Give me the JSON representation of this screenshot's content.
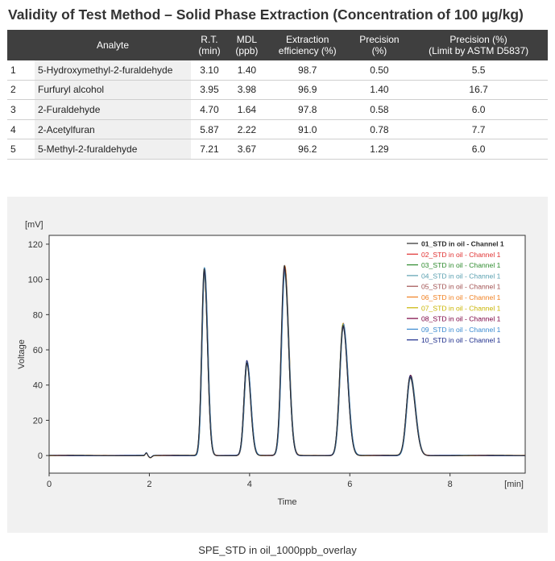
{
  "title": "Validity of Test Method – Solid Phase Extraction (Concentration of 100 µg/kg)",
  "table": {
    "headers": [
      {
        "line1": "",
        "line2": ""
      },
      {
        "line1": "Analyte",
        "line2": ""
      },
      {
        "line1": "R.T.",
        "line2": "(min)"
      },
      {
        "line1": "MDL",
        "line2": "(ppb)"
      },
      {
        "line1": "Extraction",
        "line2": "efficiency (%)"
      },
      {
        "line1": "Precision",
        "line2": "(%)"
      },
      {
        "line1": "Precision (%)",
        "line2": "(Limit by ASTM D5837)"
      }
    ],
    "rows": [
      {
        "num": "1",
        "analyte": "5-Hydroxymethyl-2-furaldehyde",
        "rt": "3.10",
        "mdl": "1.40",
        "eff": "98.7",
        "prec": "0.50",
        "limit": "5.5"
      },
      {
        "num": "2",
        "analyte": "Furfuryl alcohol",
        "rt": "3.95",
        "mdl": "3.98",
        "eff": "96.9",
        "prec": "1.40",
        "limit": "16.7"
      },
      {
        "num": "3",
        "analyte": "2-Furaldehyde",
        "rt": "4.70",
        "mdl": "1.64",
        "eff": "97.8",
        "prec": "0.58",
        "limit": "6.0"
      },
      {
        "num": "4",
        "analyte": "2-Acetylfuran",
        "rt": "5.87",
        "mdl": "2.22",
        "eff": "91.0",
        "prec": "0.78",
        "limit": "7.7"
      },
      {
        "num": "5",
        "analyte": "5-Methyl-2-furaldehyde",
        "rt": "7.21",
        "mdl": "3.67",
        "eff": "96.2",
        "prec": "1.29",
        "limit": "6.0"
      }
    ]
  },
  "chart_data": {
    "type": "line",
    "title": "",
    "xlabel": "Time",
    "ylabel": "Voltage",
    "x_unit": "[min]",
    "y_unit": "[mV]",
    "xlim": [
      0,
      9.5
    ],
    "ylim": [
      -10,
      125
    ],
    "x_ticks": [
      0,
      2,
      4,
      6,
      8
    ],
    "y_ticks": [
      0,
      20,
      40,
      60,
      80,
      100,
      120
    ],
    "grid": false,
    "legend_position": "top-right",
    "peaks": [
      {
        "x": 1.94,
        "y": 1.5
      },
      {
        "x": 3.1,
        "y": 105
      },
      {
        "x": 3.95,
        "y": 53
      },
      {
        "x": 4.7,
        "y": 106
      },
      {
        "x": 5.87,
        "y": 74
      },
      {
        "x": 7.21,
        "y": 45
      }
    ],
    "series": [
      {
        "name": "01_STD in oil -  Channel 1",
        "color": "#2a2a2a"
      },
      {
        "name": "02_STD in oil -  Channel 1",
        "color": "#e03030"
      },
      {
        "name": "03_STD in oil -  Channel 1",
        "color": "#2e8b2e"
      },
      {
        "name": "04_STD in oil -  Channel 1",
        "color": "#5aa0b0"
      },
      {
        "name": "05_STD in oil -  Channel 1",
        "color": "#a05050"
      },
      {
        "name": "06_STD in oil -  Channel 1",
        "color": "#f08020"
      },
      {
        "name": "07_STD in oil -  Channel 1",
        "color": "#c8b400"
      },
      {
        "name": "08_STD in oil -  Channel 1",
        "color": "#7a0040"
      },
      {
        "name": "09_STD in oil -  Channel 1",
        "color": "#3a8ad0"
      },
      {
        "name": "10_STD in oil -  Channel 1",
        "color": "#1a2a8a"
      }
    ]
  },
  "caption": "SPE_STD in oil_1000ppb_overlay"
}
